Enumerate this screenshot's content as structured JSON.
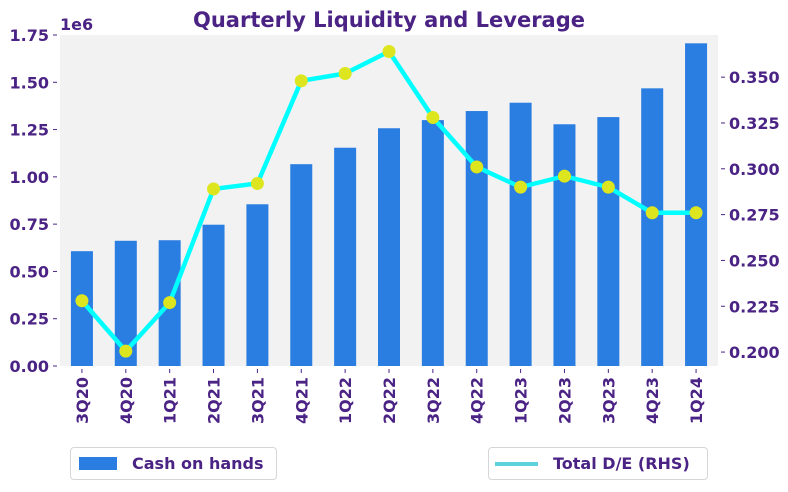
{
  "chart_data": {
    "type": "bar",
    "title": "Quarterly Liquidity and Leverage",
    "categories": [
      "3Q20",
      "4Q20",
      "1Q21",
      "2Q21",
      "3Q21",
      "4Q21",
      "1Q22",
      "2Q22",
      "3Q22",
      "4Q22",
      "1Q23",
      "2Q23",
      "3Q23",
      "4Q23",
      "1Q24"
    ],
    "left_axis": {
      "offset_label": "1e6",
      "ylim": [
        0,
        1.75
      ],
      "ticks": [
        0.0,
        0.25,
        0.5,
        0.75,
        1.0,
        1.25,
        1.5,
        1.75
      ],
      "tick_labels": [
        "0.00",
        "0.25",
        "0.50",
        "0.75",
        "1.00",
        "1.25",
        "1.50",
        "1.75"
      ]
    },
    "right_axis": {
      "ylim": [
        0.1924,
        0.373
      ],
      "ticks": [
        0.2,
        0.225,
        0.25,
        0.275,
        0.3,
        0.325,
        0.35
      ],
      "tick_labels": [
        "0.200",
        "0.225",
        "0.250",
        "0.275",
        "0.300",
        "0.325",
        "0.350"
      ]
    },
    "series": [
      {
        "name": "Cash on hands",
        "type": "bar",
        "axis": "left",
        "color": "#2a7de1",
        "values": [
          607000,
          662000,
          665000,
          747000,
          855000,
          1067000,
          1154000,
          1257000,
          1300000,
          1348000,
          1392000,
          1278000,
          1316000,
          1468000,
          1706000
        ]
      },
      {
        "name": "Total D/E (RHS)",
        "type": "line",
        "axis": "right",
        "color": "#00ffff",
        "marker_color": "#dde51e",
        "values": [
          0.228,
          0.2005,
          0.227,
          0.289,
          0.292,
          0.348,
          0.352,
          0.364,
          0.328,
          0.301,
          0.29,
          0.296,
          0.29,
          0.276,
          0.276
        ]
      }
    ],
    "grid": false,
    "plot_background": "#f2f2f2",
    "legend": [
      {
        "label": "Cash on hands",
        "placement": "bottom-left",
        "swatch_color": "#2a7de1"
      },
      {
        "label": "Total D/E (RHS)",
        "placement": "bottom-right",
        "swatch_color": "#5bd2dc"
      }
    ]
  }
}
